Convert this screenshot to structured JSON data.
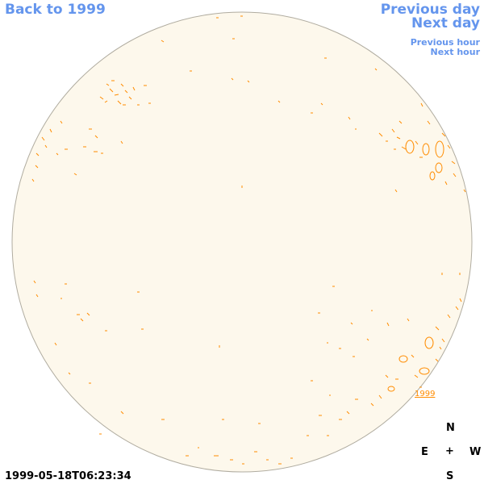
{
  "nav": {
    "back_label": "Back to 1999",
    "prev_day_label": "Previous day",
    "next_day_label": "Next day",
    "prev_hour_label": "Previous hour",
    "next_hour_label": "Next hour"
  },
  "compass": {
    "north": "N",
    "east": "E",
    "center": "+",
    "west": "W",
    "south": "S"
  },
  "timestamp": "1999-05-18T06:23:34",
  "year_marker": "1999",
  "colors": {
    "link": "#6495ed",
    "disk_fill": "#fdf8ec",
    "disk_border": "#b0aca0",
    "contour": "#ff8c00"
  }
}
